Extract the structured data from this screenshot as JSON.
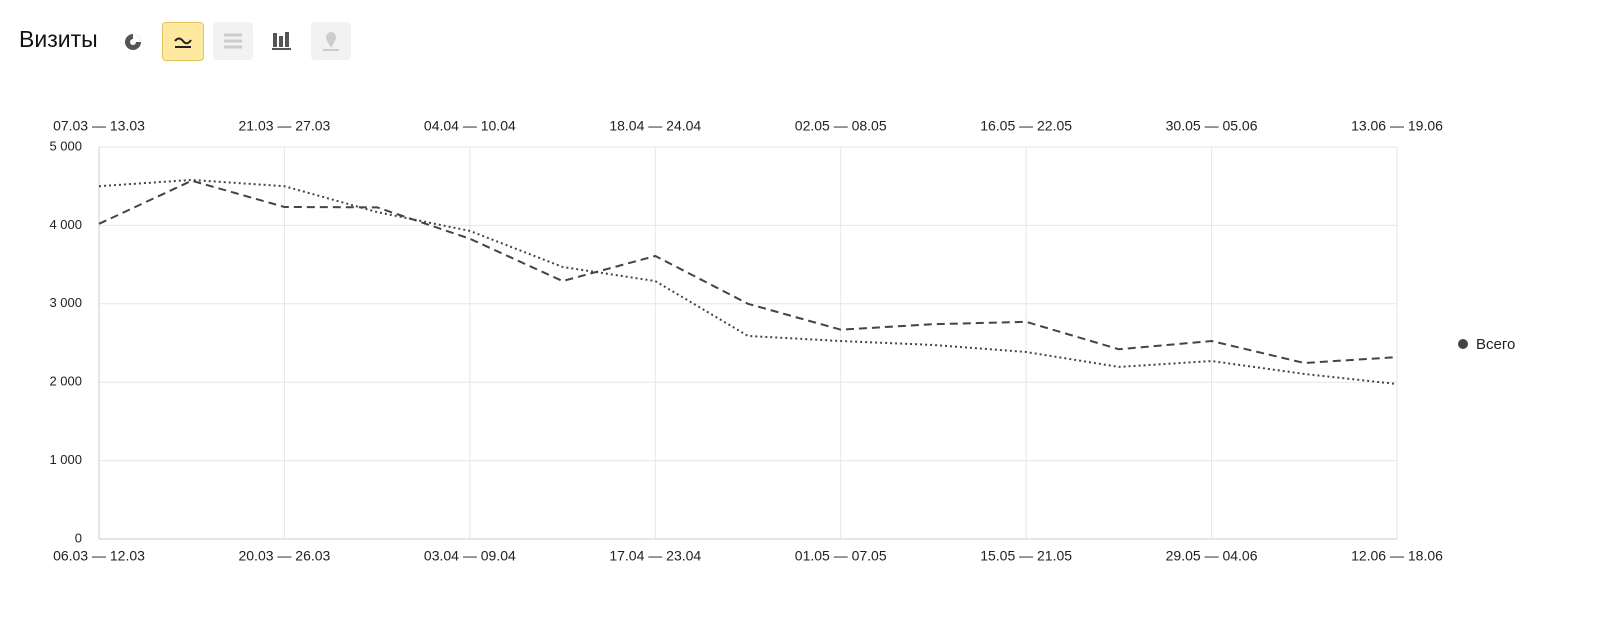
{
  "header": {
    "title": "Визиты"
  },
  "chart_data": {
    "type": "line",
    "categories": [
      "06.03 — 12.03",
      null,
      "20.03 — 26.03",
      null,
      "03.04 — 09.04",
      null,
      "17.04 — 23.04",
      null,
      "01.05 — 07.05",
      null,
      "15.05 — 21.05",
      null,
      "29.05 — 04.06",
      null,
      "12.06 — 18.06"
    ],
    "categories_top": [
      "07.03 — 13.03",
      null,
      "21.03 — 27.03",
      null,
      "04.04 — 10.04",
      null,
      "18.04 — 24.04",
      null,
      "02.05 — 08.05",
      null,
      "16.05 — 22.05",
      null,
      "30.05 — 05.06",
      null,
      "13.06 — 19.06"
    ],
    "series": [
      {
        "name": "Всего",
        "color": "#444444",
        "dash": "dashed",
        "values": [
          4020,
          4570,
          4235,
          4230,
          3830,
          3290,
          3610,
          3000,
          2670,
          2740,
          2770,
          2420,
          2525,
          2245,
          2320
        ]
      },
      {
        "color": "#444444",
        "dash": "dotted",
        "values": [
          4500,
          4580,
          4500,
          4170,
          3930,
          3470,
          3290,
          2590,
          2525,
          2475,
          2385,
          2195,
          2270,
          2105,
          1977
        ]
      }
    ],
    "ylim": [
      0,
      5000
    ],
    "yticks": [
      0,
      {
        "value": 1000,
        "label": "1 000"
      },
      {
        "value": 2000,
        "label": "2 000"
      },
      {
        "value": 3000,
        "label": "3 000"
      },
      {
        "value": 4000,
        "label": "4 000"
      },
      {
        "value": 5000,
        "label": "5 000"
      }
    ],
    "grid": true,
    "legend": "right"
  }
}
